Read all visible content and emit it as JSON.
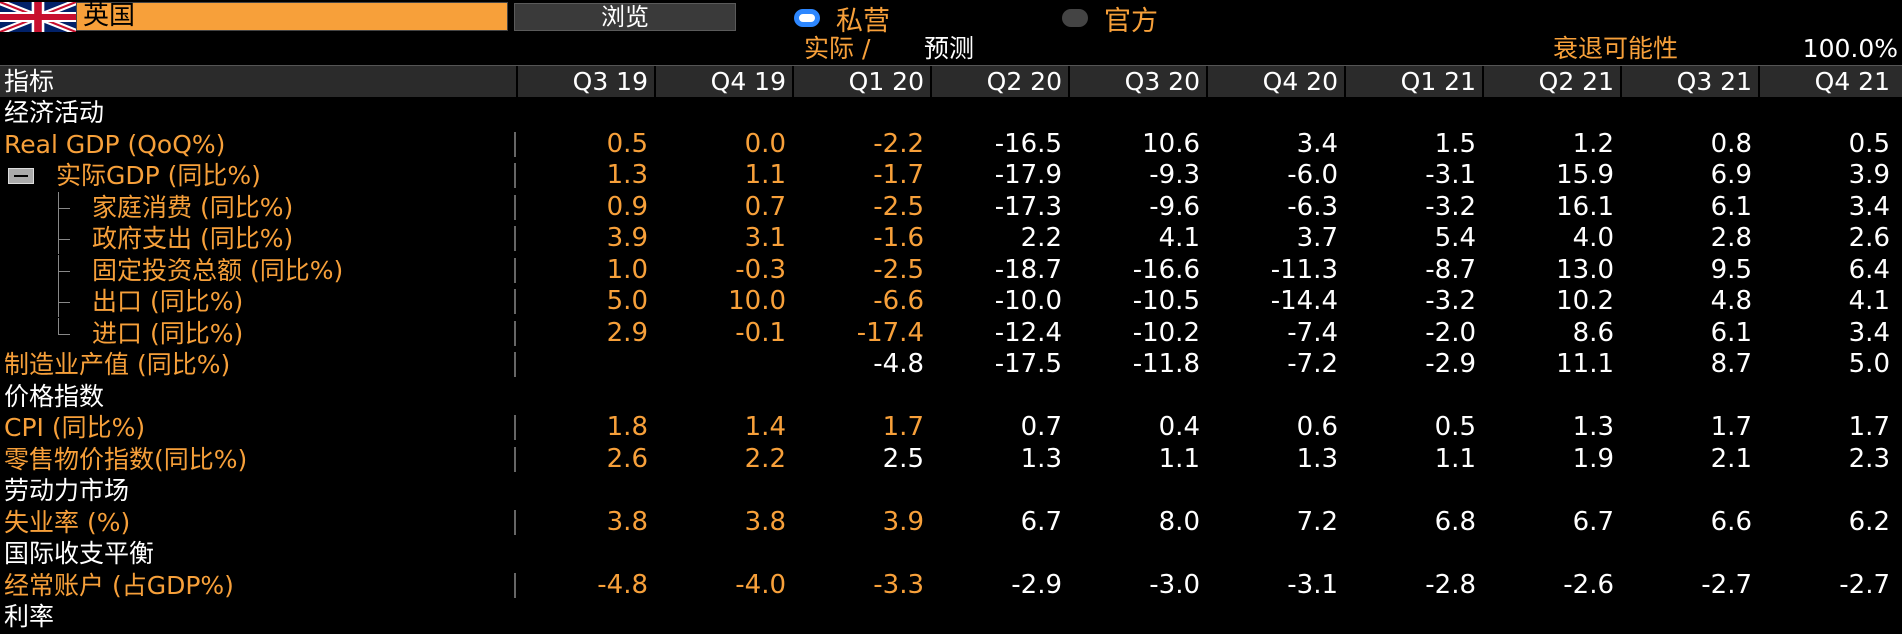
{
  "top": {
    "country": "英国",
    "browse_label": "浏览",
    "radio_private": "私营",
    "radio_official": "官方"
  },
  "legend": {
    "actual": "实际 /",
    "forecast": "预测",
    "recession_label": "衰退可能性",
    "recession_value": "100.0%"
  },
  "table": {
    "header_label": "指标",
    "columns": [
      "Q3 19",
      "Q4 19",
      "Q1 20",
      "Q2 20",
      "Q3 20",
      "Q4 20",
      "Q1 21",
      "Q2 21",
      "Q3 21",
      "Q4 21"
    ],
    "actual_columns_count": 3,
    "rows": [
      {
        "type": "section",
        "name": "经济活动"
      },
      {
        "type": "metric",
        "name": "Real GDP (QoQ%)",
        "level": 0,
        "values": [
          "0.5",
          "0.0",
          "-2.2",
          "-16.5",
          "10.6",
          "3.4",
          "1.5",
          "1.2",
          "0.8",
          "0.5"
        ]
      },
      {
        "type": "metric",
        "name": "实际GDP (同比%)",
        "level": 0,
        "collapsible": true,
        "values": [
          "1.3",
          "1.1",
          "-1.7",
          "-17.9",
          "-9.3",
          "-6.0",
          "-3.1",
          "15.9",
          "6.9",
          "3.9"
        ]
      },
      {
        "type": "metric",
        "name": "家庭消费 (同比%)",
        "level": 1,
        "values": [
          "0.9",
          "0.7",
          "-2.5",
          "-17.3",
          "-9.6",
          "-6.3",
          "-3.2",
          "16.1",
          "6.1",
          "3.4"
        ]
      },
      {
        "type": "metric",
        "name": "政府支出 (同比%)",
        "level": 1,
        "values": [
          "3.9",
          "3.1",
          "-1.6",
          "2.2",
          "4.1",
          "3.7",
          "5.4",
          "4.0",
          "2.8",
          "2.6"
        ]
      },
      {
        "type": "metric",
        "name": "固定投资总额 (同比%)",
        "level": 1,
        "values": [
          "1.0",
          "-0.3",
          "-2.5",
          "-18.7",
          "-16.6",
          "-11.3",
          "-8.7",
          "13.0",
          "9.5",
          "6.4"
        ]
      },
      {
        "type": "metric",
        "name": "出口 (同比%)",
        "level": 1,
        "values": [
          "5.0",
          "10.0",
          "-6.6",
          "-10.0",
          "-10.5",
          "-14.4",
          "-3.2",
          "10.2",
          "4.8",
          "4.1"
        ]
      },
      {
        "type": "metric",
        "name": "进口 (同比%)",
        "level": 1,
        "last": true,
        "values": [
          "2.9",
          "-0.1",
          "-17.4",
          "-12.4",
          "-10.2",
          "-7.4",
          "-2.0",
          "8.6",
          "6.1",
          "3.4"
        ]
      },
      {
        "type": "metric",
        "name": "制造业产值 (同比%)",
        "level": 0,
        "values": [
          "",
          "",
          "-4.8",
          "-17.5",
          "-11.8",
          "-7.2",
          "-2.9",
          "11.1",
          "8.7",
          "5.0"
        ],
        "forecast_from": 2
      },
      {
        "type": "section",
        "name": "价格指数"
      },
      {
        "type": "metric",
        "name": "CPI (同比%)",
        "level": 0,
        "values": [
          "1.8",
          "1.4",
          "1.7",
          "0.7",
          "0.4",
          "0.6",
          "0.5",
          "1.3",
          "1.7",
          "1.7"
        ]
      },
      {
        "type": "metric",
        "name": "零售物价指数(同比%)",
        "level": 0,
        "values": [
          "2.6",
          "2.2",
          "2.5",
          "1.3",
          "1.1",
          "1.3",
          "1.1",
          "1.9",
          "2.1",
          "2.3"
        ],
        "forecast_from": 2
      },
      {
        "type": "section",
        "name": "劳动力市场"
      },
      {
        "type": "metric",
        "name": "失业率 (%)",
        "level": 0,
        "values": [
          "3.8",
          "3.8",
          "3.9",
          "6.7",
          "8.0",
          "7.2",
          "6.8",
          "6.7",
          "6.6",
          "6.2"
        ]
      },
      {
        "type": "section",
        "name": "国际收支平衡"
      },
      {
        "type": "metric",
        "name": "经常账户 (占GDP%)",
        "level": 0,
        "values": [
          "-4.8",
          "-4.0",
          "-3.3",
          "-2.9",
          "-3.0",
          "-3.1",
          "-2.8",
          "-2.6",
          "-2.7",
          "-2.7"
        ]
      },
      {
        "type": "section",
        "name": "利率"
      }
    ]
  },
  "colors": {
    "accent": "#f7a03a",
    "background": "#000000",
    "forecast_text": "#ffffff",
    "radio_active": "#2d87ff"
  }
}
